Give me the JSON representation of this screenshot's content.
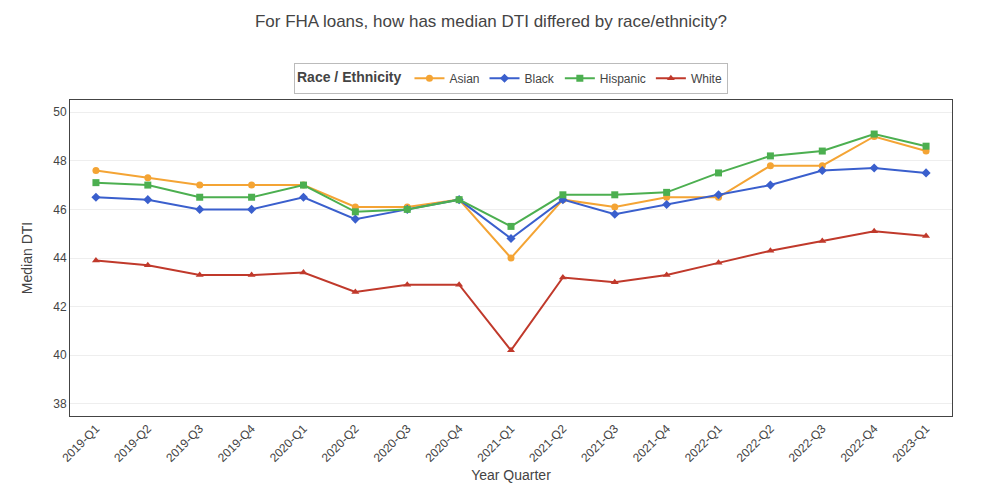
{
  "chart_data": {
    "type": "line",
    "title": "For FHA loans, how has median DTI differed by race/ethnicity?",
    "xlabel": "Year Quarter",
    "ylabel": "Median DTI",
    "legend_title": "Race / Ethnicity",
    "categories": [
      "2019-Q1",
      "2019-Q2",
      "2019-Q3",
      "2019-Q4",
      "2020-Q1",
      "2020-Q2",
      "2020-Q3",
      "2020-Q4",
      "2021-Q1",
      "2021-Q2",
      "2021-Q3",
      "2021-Q4",
      "2022-Q1",
      "2022-Q2",
      "2022-Q3",
      "2022-Q4",
      "2023-Q1"
    ],
    "series": [
      {
        "name": "Asian",
        "color": "#f4a434",
        "marker": "circle",
        "values": [
          47.6,
          47.3,
          47.0,
          47.0,
          47.0,
          46.1,
          46.1,
          46.4,
          44.0,
          46.4,
          46.1,
          46.5,
          46.5,
          47.8,
          47.8,
          49.0,
          48.4
        ]
      },
      {
        "name": "Black",
        "color": "#3a5fcd",
        "marker": "diamond",
        "values": [
          46.5,
          46.4,
          46.0,
          46.0,
          46.5,
          45.6,
          46.0,
          46.4,
          44.8,
          46.4,
          45.8,
          46.2,
          46.6,
          47.0,
          47.6,
          47.7,
          47.5
        ]
      },
      {
        "name": "Hispanic",
        "color": "#4caf50",
        "marker": "square",
        "values": [
          47.1,
          47.0,
          46.5,
          46.5,
          47.0,
          45.9,
          46.0,
          46.4,
          45.3,
          46.6,
          46.6,
          46.7,
          47.5,
          48.2,
          48.4,
          49.1,
          48.6
        ]
      },
      {
        "name": "White",
        "color": "#c0392b",
        "marker": "triangle-up",
        "values": [
          43.9,
          43.7,
          43.3,
          43.3,
          43.4,
          42.6,
          42.9,
          42.9,
          40.2,
          43.2,
          43.0,
          43.3,
          43.8,
          44.3,
          44.7,
          45.1,
          44.9
        ]
      }
    ],
    "ylim": [
      37.5,
      50.5
    ],
    "yticks": [
      38,
      40,
      42,
      44,
      46,
      48,
      50
    ],
    "grid": "y",
    "legend": "top"
  }
}
